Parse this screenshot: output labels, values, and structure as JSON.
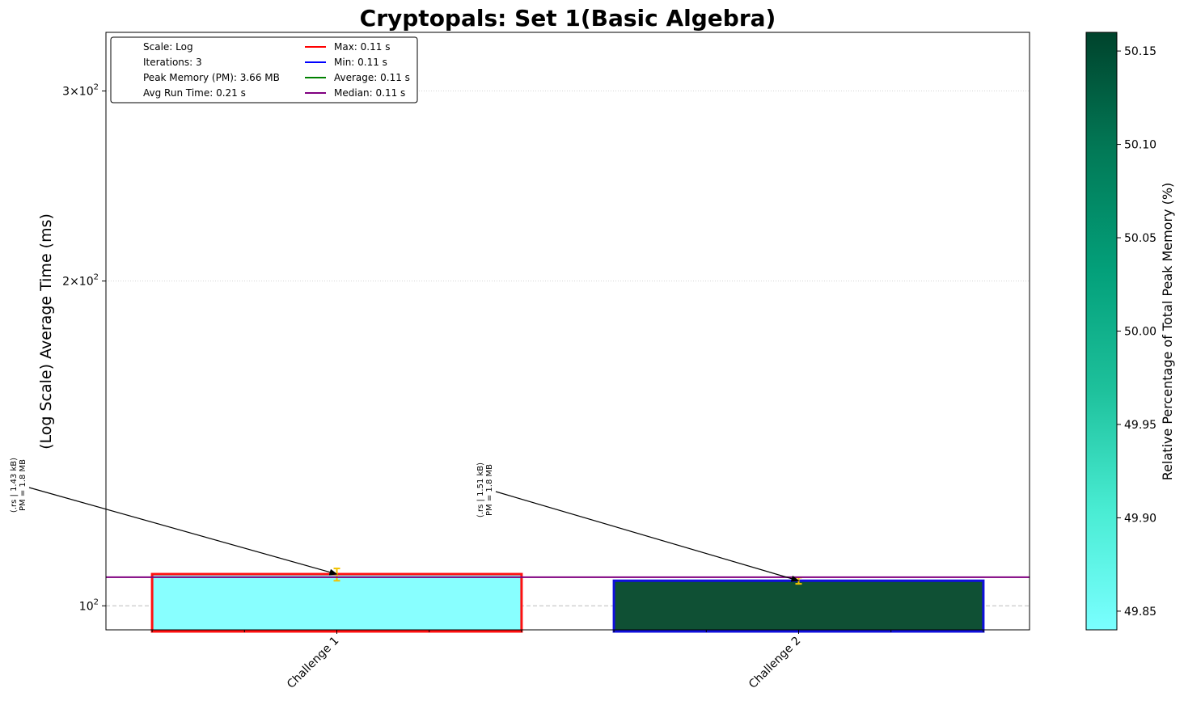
{
  "chart_data": {
    "type": "bar",
    "title": "Cryptopals: Set 1(Basic Algebra)",
    "xlabel": "",
    "ylabel": "(Log Scale) Average Time (ms)",
    "yscale": "log",
    "ylim": [
      95,
      340
    ],
    "y_ticks": [
      {
        "value": 100,
        "base": "10",
        "exp": "2",
        "mantissa": ""
      },
      {
        "value": 200,
        "base": "10",
        "exp": "2",
        "mantissa": "2×"
      },
      {
        "value": 300,
        "base": "10",
        "exp": "2",
        "mantissa": "3×"
      }
    ],
    "grid": true,
    "categories": [
      "Challenge 1",
      "Challenge 2"
    ],
    "values": [
      107,
      105.5
    ],
    "error_low": [
      105.5,
      104.8
    ],
    "error_high": [
      108.3,
      106.2
    ],
    "bar_fill_colors": [
      "#88ffff",
      "#0f5034"
    ],
    "bar_edge_colors": [
      "#ff1010",
      "#1010dd"
    ],
    "error_color": "#f2c200",
    "median_line": {
      "value": 106.3,
      "color": "#800080"
    },
    "reference_line": {
      "value": 100
    },
    "annotations": [
      {
        "lines": [
          "(.rs | 1.43 kB)",
          "PM = 1.8 MB"
        ]
      },
      {
        "lines": [
          "(.rs | 1.51 kB)",
          "PM = 1.8 MB"
        ]
      }
    ],
    "legend": {
      "placement": "top-left",
      "info": [
        "Scale: Log",
        "Iterations: 3",
        "Peak Memory (PM): 3.66 MB",
        "Avg Run Time: 0.21 s"
      ],
      "lines": [
        {
          "label": "Max: 0.11 s",
          "color": "#ff0000"
        },
        {
          "label": "Min: 0.11 s",
          "color": "#0000ff"
        },
        {
          "label": "Average: 0.11 s",
          "color": "#008000"
        },
        {
          "label": "Median: 0.11 s",
          "color": "#800080"
        }
      ]
    },
    "colorbar": {
      "label": "Relative Percentage of Total Peak Memory (%)",
      "range": [
        49.84,
        50.16
      ],
      "ticks": [
        "49.85",
        "49.90",
        "49.95",
        "50.00",
        "50.05",
        "50.10",
        "50.15"
      ],
      "colors": [
        "#7affff",
        "#49ecd3",
        "#1ec19c",
        "#03a07a",
        "#027a57",
        "#00432c"
      ]
    }
  }
}
